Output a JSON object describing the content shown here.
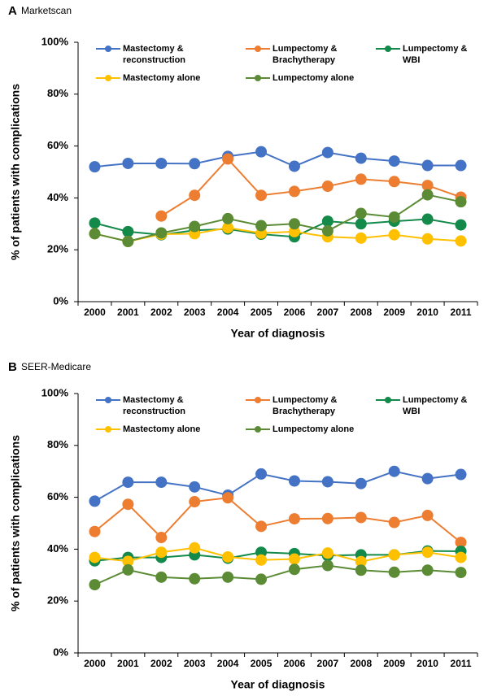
{
  "chart_data": [
    {
      "type": "line",
      "panel": "A",
      "title": "Marketscan",
      "x_label": "Year of diagnosis",
      "y_label": "% of patients with complications",
      "categories": [
        "2000",
        "2001",
        "2002",
        "2003",
        "2004",
        "2005",
        "2006",
        "2007",
        "2008",
        "2009",
        "2010",
        "2011"
      ],
      "ylim": [
        0,
        100
      ],
      "yticks": [
        {
          "value": 0,
          "label": "0%"
        },
        {
          "value": 20,
          "label": "20%"
        },
        {
          "value": 40,
          "label": "40%"
        },
        {
          "value": 60,
          "label": "60%"
        },
        {
          "value": 80,
          "label": "80%"
        },
        {
          "value": 100,
          "label": "100%"
        }
      ],
      "series": [
        {
          "name": "Mastectomy & reconstruction",
          "color": "#4472c4",
          "values": [
            52,
            53.3,
            53.3,
            53.2,
            56,
            57.8,
            52.2,
            57.5,
            55.3,
            54.2,
            52.5,
            52.5
          ]
        },
        {
          "name": "Lumpectomy & Brachytherapy",
          "color": "#ed7d31",
          "values": [
            null,
            null,
            33,
            41,
            55,
            41,
            42.5,
            44.5,
            47.2,
            46.3,
            44.8,
            40.3
          ]
        },
        {
          "name": "Lumpectomy & WBI",
          "color": "#138a4a",
          "values": [
            30.3,
            27,
            25.8,
            27.5,
            28,
            26,
            25,
            31,
            30,
            31,
            31.8,
            29.6
          ]
        },
        {
          "name": "Mastectomy alone",
          "color": "#ffc000",
          "values": [
            26.2,
            23.2,
            26,
            26.2,
            28.5,
            26.4,
            27,
            25,
            24.5,
            25.8,
            24.2,
            23.4
          ]
        },
        {
          "name": "Lumpectomy alone",
          "color": "#5b8c35",
          "values": [
            26.2,
            23.2,
            26.5,
            29,
            32,
            29.3,
            30,
            27.3,
            34,
            32.6,
            41.2,
            38.5
          ]
        }
      ]
    },
    {
      "type": "line",
      "panel": "B",
      "title": "SEER-Medicare",
      "x_label": "Year of diagnosis",
      "y_label": "% of patients with complications",
      "categories": [
        "2000",
        "2001",
        "2002",
        "2003",
        "2004",
        "2005",
        "2006",
        "2007",
        "2008",
        "2009",
        "2010",
        "2011"
      ],
      "ylim": [
        0,
        100
      ],
      "yticks": [
        {
          "value": 0,
          "label": "0%"
        },
        {
          "value": 20,
          "label": "20%"
        },
        {
          "value": 40,
          "label": "40%"
        },
        {
          "value": 60,
          "label": "60%"
        },
        {
          "value": 80,
          "label": "80%"
        },
        {
          "value": 100,
          "label": "100%"
        }
      ],
      "series": [
        {
          "name": "Mastectomy & reconstruction",
          "color": "#4472c4",
          "values": [
            58.5,
            65.8,
            65.8,
            64,
            60.8,
            69,
            66.3,
            66,
            65.3,
            70,
            67.2,
            68.8
          ]
        },
        {
          "name": "Lumpectomy & Brachytherapy",
          "color": "#ed7d31",
          "values": [
            46.8,
            57.3,
            44.5,
            58.3,
            59.8,
            48.8,
            51.7,
            51.8,
            52.2,
            50.3,
            53,
            42.6
          ]
        },
        {
          "name": "Lumpectomy & WBI",
          "color": "#138a4a",
          "values": [
            35.5,
            36.8,
            36.8,
            37.8,
            36.5,
            38.8,
            38.3,
            37.5,
            37.8,
            37.8,
            39.3,
            39.2
          ]
        },
        {
          "name": "Mastectomy alone",
          "color": "#ffc000",
          "values": [
            36.8,
            35.3,
            38.8,
            40.5,
            37,
            35.8,
            36.2,
            38.5,
            35.2,
            37.8,
            38.8,
            36.8
          ]
        },
        {
          "name": "Lumpectomy alone",
          "color": "#5b8c35",
          "values": [
            26.3,
            32,
            29.2,
            28.6,
            29.2,
            28.4,
            32.2,
            33.7,
            31.9,
            31.1,
            31.9,
            31
          ]
        }
      ]
    }
  ]
}
